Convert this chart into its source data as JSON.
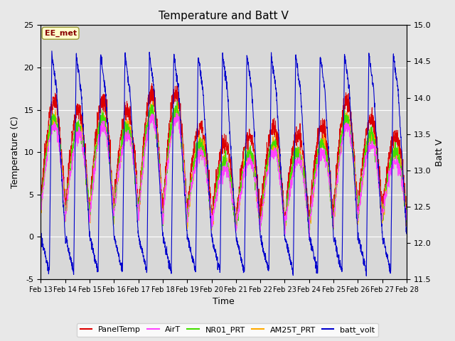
{
  "title": "Temperature and Batt V",
  "xlabel": "Time",
  "ylabel_left": "Temperature (C)",
  "ylabel_right": "Batt V",
  "annotation_text": "EE_met",
  "xlim_days": [
    13,
    28
  ],
  "ylim_left": [
    -5,
    25
  ],
  "ylim_right": [
    11.5,
    15.0
  ],
  "xtick_labels": [
    "Feb 13",
    "Feb 14",
    "Feb 15",
    "Feb 16",
    "Feb 17",
    "Feb 18",
    "Feb 19",
    "Feb 20",
    "Feb 21",
    "Feb 22",
    "Feb 23",
    "Feb 24",
    "Feb 25",
    "Feb 26",
    "Feb 27",
    "Feb 28"
  ],
  "yticks_left": [
    -5,
    0,
    5,
    10,
    15,
    20,
    25
  ],
  "yticks_right": [
    11.5,
    12.0,
    12.5,
    13.0,
    13.5,
    14.0,
    14.5,
    15.0
  ],
  "colors": {
    "PanelTemp": "#dd0000",
    "AirT": "#ff44ff",
    "NR01_PRT": "#44dd00",
    "AM25T_PRT": "#ffaa00",
    "batt_volt": "#0000cc"
  },
  "bg_color": "#e8e8e8",
  "plot_area_color": "#d8d8d8",
  "n_days": 15,
  "pts_per_day": 144
}
